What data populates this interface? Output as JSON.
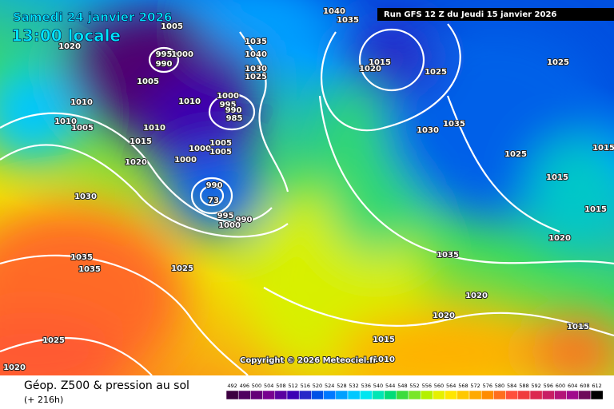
{
  "header": {
    "date": "Samedi 24 janvier 2026",
    "time": "13:00 locale",
    "run": "Run GFS 12 Z du Jeudi 15 janvier 2026"
  },
  "copyright": "Copyright © 2026 Meteociel.fr",
  "footer": {
    "title": "Géop. Z500 & pression au sol",
    "lead": "(+ 216h)"
  },
  "scale": {
    "labels": [
      492,
      496,
      500,
      504,
      508,
      512,
      516,
      520,
      524,
      528,
      532,
      536,
      540,
      544,
      548,
      552,
      556,
      560,
      564,
      568,
      572,
      576,
      580,
      584,
      588,
      592,
      596,
      600,
      604,
      608,
      612
    ],
    "colors": [
      "#3c0040",
      "#500060",
      "#640078",
      "#780090",
      "#5a00a0",
      "#3c00b4",
      "#2828c8",
      "#0050e6",
      "#0078ff",
      "#00a0ff",
      "#00c8ff",
      "#00e6f0",
      "#00e6b4",
      "#00dc78",
      "#3cdc3c",
      "#78e628",
      "#b4f000",
      "#e6f000",
      "#ffe600",
      "#ffc800",
      "#ffaa00",
      "#ff8c00",
      "#ff6e1e",
      "#ff503c",
      "#f03c3c",
      "#dc2850",
      "#c81e64",
      "#b41478",
      "#a00a8c",
      "#6e0a5a",
      "#000000"
    ]
  },
  "isobars": [
    "1005",
    "1020",
    "995",
    "1000",
    "990",
    "1005",
    "1010",
    "1000",
    "995",
    "990",
    "985",
    "1035",
    "1040",
    "1030",
    "1025",
    "1040",
    "1035",
    "1015",
    "1020",
    "1025",
    "1030",
    "1035",
    "1025",
    "1025",
    "1015",
    "1015",
    "1015",
    "1020",
    "1010",
    "1010",
    "1005",
    "1010",
    "1015",
    "1000",
    "1005",
    "1005",
    "1000",
    "1020",
    "990",
    "73",
    "995",
    "990",
    "1000",
    "1030",
    "1035",
    "1035",
    "1025",
    "1035",
    "1020",
    "1020",
    "1015",
    "1025",
    "1020",
    "1015",
    "1010"
  ]
}
